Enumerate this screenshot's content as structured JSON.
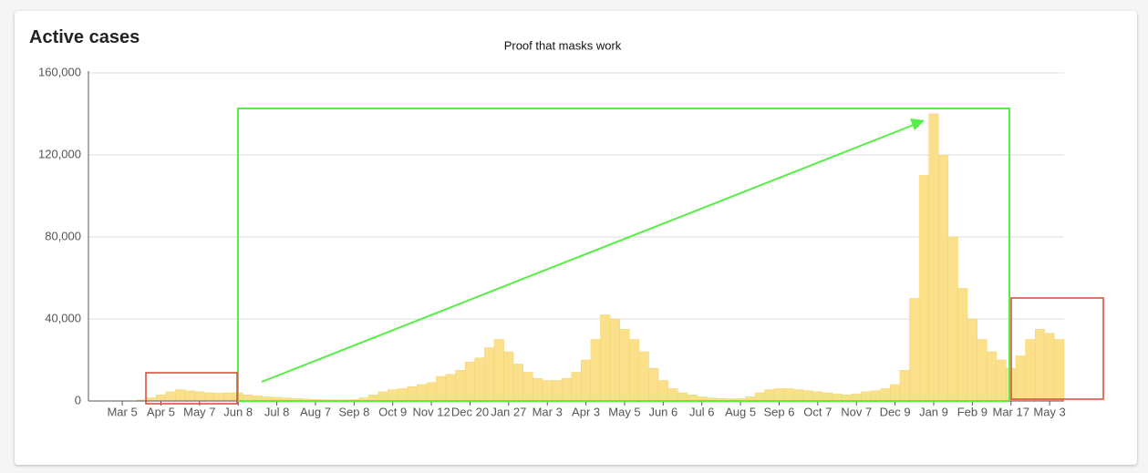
{
  "chart_data": {
    "type": "bar",
    "title": "Active cases",
    "subtitle": "Proof that masks work",
    "categories": [
      null,
      null,
      null,
      "Mar 5",
      null,
      null,
      null,
      "Apr 5",
      null,
      null,
      null,
      "May 7",
      null,
      null,
      null,
      "Jun 8",
      null,
      null,
      null,
      "Jul 8",
      null,
      null,
      null,
      "Aug 7",
      null,
      null,
      null,
      "Sep 8",
      null,
      null,
      null,
      "Oct 9",
      null,
      null,
      null,
      "Nov 12",
      null,
      null,
      null,
      "Dec 20",
      null,
      null,
      null,
      "Jan 27",
      null,
      null,
      null,
      "Mar 3",
      null,
      null,
      null,
      "Apr 3",
      null,
      null,
      null,
      "May 5",
      null,
      null,
      null,
      "Jun 6",
      null,
      null,
      null,
      "Jul 6",
      null,
      null,
      null,
      "Aug 5",
      null,
      null,
      null,
      "Sep 6",
      null,
      null,
      null,
      "Oct 7",
      null,
      null,
      null,
      "Nov 7",
      null,
      null,
      null,
      "Dec 9",
      null,
      null,
      null,
      "Jan 9",
      null,
      null,
      null,
      "Feb 9",
      null,
      null,
      null,
      "Mar 17",
      null,
      null,
      null,
      "May 3",
      null
    ],
    "values": [
      0,
      0,
      0,
      0,
      0,
      500,
      1500,
      3000,
      4500,
      5500,
      5000,
      4500,
      4000,
      3800,
      4000,
      4000,
      3000,
      2500,
      2000,
      1800,
      1500,
      1200,
      1000,
      800,
      600,
      500,
      500,
      700,
      1500,
      3000,
      4500,
      5500,
      6000,
      7000,
      8000,
      9000,
      12000,
      13000,
      15000,
      19000,
      21000,
      26000,
      30000,
      24000,
      18000,
      14000,
      11000,
      10000,
      10000,
      11000,
      14000,
      20000,
      30000,
      42000,
      40000,
      35000,
      30000,
      24000,
      16000,
      10000,
      6000,
      4000,
      3000,
      2000,
      1500,
      1200,
      1000,
      1200,
      2000,
      4000,
      5500,
      6000,
      6000,
      5500,
      5000,
      4500,
      4000,
      3500,
      3000,
      3500,
      4500,
      5000,
      6000,
      8000,
      15000,
      50000,
      110000,
      140000,
      120000,
      80000,
      55000,
      40000,
      30000,
      24000,
      20000,
      16000,
      22000,
      30000,
      35000,
      33000,
      30000
    ],
    "color": "#fbe08c",
    "ylim": [
      0,
      160000
    ],
    "yticks": [
      0,
      {
        "value": 40000,
        "label": "40,000"
      },
      {
        "value": 80000,
        "label": "80,000"
      },
      {
        "value": 120000,
        "label": "120,000"
      },
      {
        "value": 160000,
        "label": "160,000"
      }
    ],
    "grid": true
  }
}
